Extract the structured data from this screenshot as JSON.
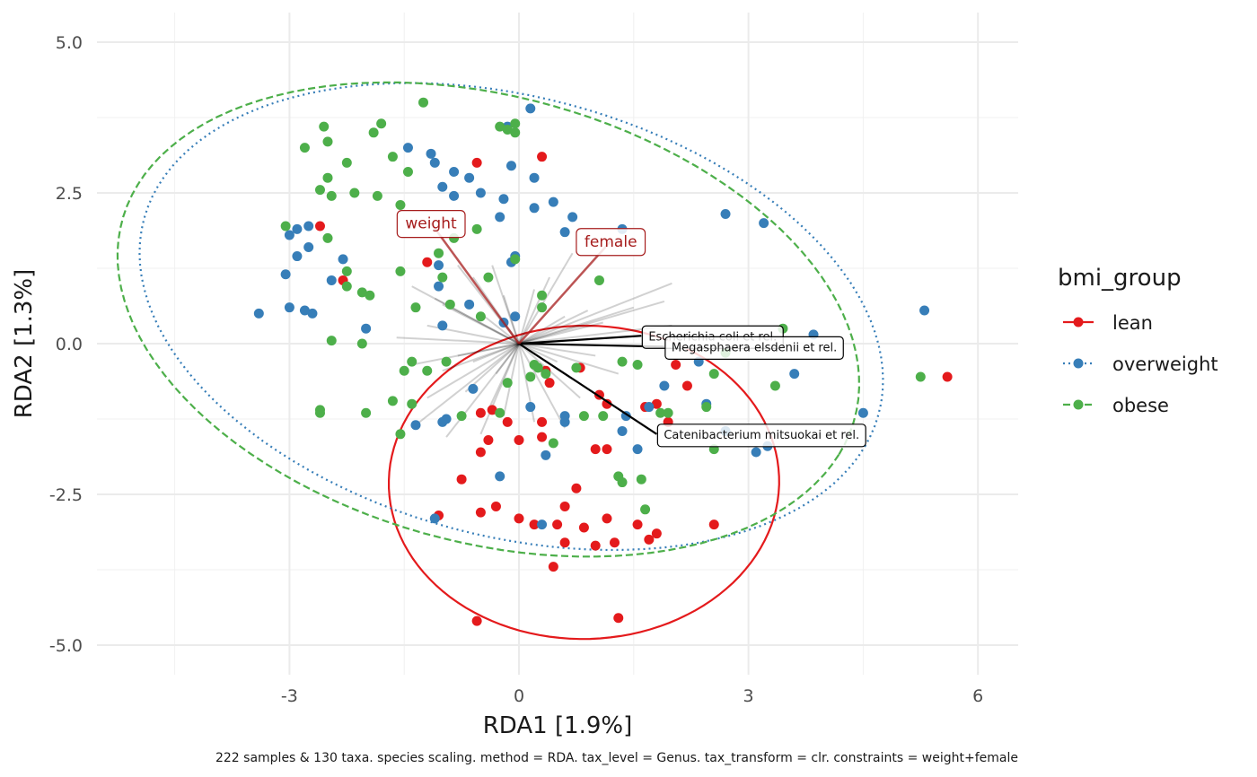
{
  "chart_data": {
    "type": "scatter",
    "xlabel": "RDA1 [1.9%]",
    "ylabel": "RDA2 [1.3%]",
    "caption": "222 samples & 130 taxa. species scaling. method = RDA. tax_level = Genus. tax_transform = clr. constraints = weight+female",
    "xlim": [
      -5.3,
      6.5
    ],
    "ylim": [
      -5.4,
      5.35
    ],
    "x_ticks": [
      -3,
      0,
      3,
      6
    ],
    "x_tick_labels": [
      "-3",
      "0",
      "3",
      "6"
    ],
    "y_ticks": [
      5.0,
      2.5,
      0.0,
      -2.5,
      -5.0
    ],
    "y_tick_labels": [
      "5.0",
      "2.5",
      "0.0",
      "-2.5",
      "-5.0"
    ],
    "grid": true,
    "legend": {
      "title": "bmi_group",
      "position": "right"
    },
    "series": [
      {
        "name": "lean",
        "color": "#e41a1c",
        "ellipse_style": "solid",
        "ellipse": {
          "cx": 0.85,
          "cy": -2.3,
          "rx": 2.6,
          "ry": 2.55,
          "angle": 80
        },
        "points": [
          [
            -2.6,
            1.95
          ],
          [
            -2.3,
            1.05
          ],
          [
            -1.2,
            1.35
          ],
          [
            -0.55,
            3.0
          ],
          [
            0.3,
            3.1
          ],
          [
            -0.75,
            -2.25
          ],
          [
            -0.5,
            -2.8
          ],
          [
            -0.3,
            -2.7
          ],
          [
            -0.5,
            -1.8
          ],
          [
            -0.4,
            -1.6
          ],
          [
            -0.35,
            -1.1
          ],
          [
            -0.5,
            -1.15
          ],
          [
            -0.15,
            -1.3
          ],
          [
            0.0,
            -1.6
          ],
          [
            0.3,
            -1.3
          ],
          [
            0.35,
            -0.45
          ],
          [
            0.4,
            -0.65
          ],
          [
            0.8,
            -0.4
          ],
          [
            1.05,
            -0.85
          ],
          [
            1.15,
            -1.0
          ],
          [
            1.65,
            -1.05
          ],
          [
            1.8,
            -1.0
          ],
          [
            1.95,
            -1.3
          ],
          [
            2.05,
            -0.35
          ],
          [
            2.2,
            -0.7
          ],
          [
            1.0,
            -1.75
          ],
          [
            1.15,
            -1.75
          ],
          [
            1.0,
            -3.35
          ],
          [
            0.6,
            -3.3
          ],
          [
            0.6,
            -2.7
          ],
          [
            0.5,
            -3.0
          ],
          [
            0.75,
            -2.4
          ],
          [
            0.85,
            -3.05
          ],
          [
            1.15,
            -2.9
          ],
          [
            1.25,
            -3.3
          ],
          [
            1.55,
            -3.0
          ],
          [
            1.7,
            -3.25
          ],
          [
            1.8,
            -3.15
          ],
          [
            0.2,
            -3.0
          ],
          [
            0.0,
            -2.9
          ],
          [
            -1.05,
            -2.85
          ],
          [
            -0.55,
            -4.6
          ],
          [
            0.45,
            -3.7
          ],
          [
            1.3,
            -4.55
          ],
          [
            2.55,
            -3.0
          ],
          [
            5.6,
            -0.55
          ],
          [
            0.3,
            -1.55
          ]
        ]
      },
      {
        "name": "overweight",
        "color": "#377eb8",
        "ellipse_style": "dotted",
        "ellipse": {
          "cx": -0.1,
          "cy": 0.45,
          "rx": 5.1,
          "ry": 3.55,
          "angle": -25
        },
        "points": [
          [
            -3.4,
            0.5
          ],
          [
            -3.05,
            1.15
          ],
          [
            -3.0,
            1.8
          ],
          [
            -3.0,
            0.6
          ],
          [
            -2.9,
            1.45
          ],
          [
            -2.9,
            1.9
          ],
          [
            -2.8,
            0.55
          ],
          [
            -2.75,
            1.6
          ],
          [
            -2.75,
            1.95
          ],
          [
            -2.7,
            0.5
          ],
          [
            -2.45,
            1.05
          ],
          [
            -2.3,
            1.4
          ],
          [
            -2.0,
            0.25
          ],
          [
            -1.45,
            3.25
          ],
          [
            -1.15,
            3.15
          ],
          [
            -1.1,
            3.0
          ],
          [
            -1.0,
            2.6
          ],
          [
            -0.85,
            2.45
          ],
          [
            -0.85,
            2.85
          ],
          [
            -0.65,
            2.75
          ],
          [
            -0.5,
            2.5
          ],
          [
            -0.25,
            2.1
          ],
          [
            -0.2,
            2.4
          ],
          [
            -0.1,
            2.95
          ],
          [
            -0.15,
            3.6
          ],
          [
            0.15,
            3.9
          ],
          [
            0.2,
            2.75
          ],
          [
            0.2,
            2.25
          ],
          [
            0.45,
            2.35
          ],
          [
            0.6,
            1.85
          ],
          [
            0.7,
            2.1
          ],
          [
            1.35,
            1.9
          ],
          [
            -1.05,
            1.3
          ],
          [
            -1.05,
            0.95
          ],
          [
            -1.0,
            0.3
          ],
          [
            -0.65,
            0.65
          ],
          [
            -0.2,
            0.35
          ],
          [
            -0.1,
            1.35
          ],
          [
            -0.05,
            1.45
          ],
          [
            -0.05,
            0.45
          ],
          [
            -1.35,
            -1.35
          ],
          [
            -1.0,
            -1.3
          ],
          [
            -0.95,
            -1.25
          ],
          [
            -0.6,
            -0.75
          ],
          [
            -0.25,
            -2.2
          ],
          [
            -1.1,
            -2.9
          ],
          [
            0.15,
            -1.05
          ],
          [
            0.6,
            -1.2
          ],
          [
            0.6,
            -1.3
          ],
          [
            1.4,
            -1.2
          ],
          [
            1.7,
            -1.05
          ],
          [
            1.9,
            -0.7
          ],
          [
            2.35,
            -0.3
          ],
          [
            2.45,
            -1.0
          ],
          [
            2.7,
            -1.45
          ],
          [
            2.7,
            2.15
          ],
          [
            3.2,
            2.0
          ],
          [
            3.1,
            -1.8
          ],
          [
            3.25,
            -1.7
          ],
          [
            3.6,
            -0.5
          ],
          [
            3.85,
            0.15
          ],
          [
            4.5,
            -1.15
          ],
          [
            5.3,
            0.55
          ],
          [
            0.35,
            -1.85
          ],
          [
            0.3,
            -3.0
          ],
          [
            1.55,
            -1.75
          ],
          [
            1.35,
            -1.45
          ]
        ]
      },
      {
        "name": "obese",
        "color": "#4daf4a",
        "ellipse_style": "dashed",
        "ellipse": {
          "cx": -0.4,
          "cy": 0.4,
          "rx": 5.1,
          "ry": 3.6,
          "angle": -26
        },
        "points": [
          [
            -3.05,
            1.95
          ],
          [
            -2.8,
            3.25
          ],
          [
            -2.6,
            2.55
          ],
          [
            -2.55,
            3.6
          ],
          [
            -2.5,
            3.35
          ],
          [
            -2.5,
            2.75
          ],
          [
            -2.5,
            1.75
          ],
          [
            -2.45,
            0.05
          ],
          [
            -2.45,
            2.45
          ],
          [
            -2.25,
            3.0
          ],
          [
            -2.25,
            1.2
          ],
          [
            -2.25,
            0.95
          ],
          [
            -2.15,
            2.5
          ],
          [
            -2.05,
            0.85
          ],
          [
            -2.05,
            0.0
          ],
          [
            -1.95,
            0.8
          ],
          [
            -1.9,
            3.5
          ],
          [
            -1.85,
            2.45
          ],
          [
            -1.8,
            3.65
          ],
          [
            -1.65,
            3.1
          ],
          [
            -1.55,
            2.3
          ],
          [
            -1.55,
            1.2
          ],
          [
            -1.45,
            2.85
          ],
          [
            -1.35,
            0.6
          ],
          [
            -1.25,
            4.0
          ],
          [
            -1.2,
            -0.45
          ],
          [
            -1.05,
            1.5
          ],
          [
            -1.0,
            1.1
          ],
          [
            -0.9,
            0.65
          ],
          [
            -0.85,
            1.75
          ],
          [
            -0.55,
            1.9
          ],
          [
            -0.5,
            0.45
          ],
          [
            -0.4,
            1.1
          ],
          [
            -0.25,
            3.6
          ],
          [
            -0.15,
            3.55
          ],
          [
            -0.05,
            3.65
          ],
          [
            -0.05,
            3.5
          ],
          [
            -0.05,
            1.4
          ],
          [
            0.3,
            0.8
          ],
          [
            0.3,
            0.6
          ],
          [
            0.35,
            -0.5
          ],
          [
            0.2,
            -0.35
          ],
          [
            0.15,
            -0.55
          ],
          [
            0.75,
            -0.4
          ],
          [
            1.05,
            1.05
          ],
          [
            0.45,
            -1.65
          ],
          [
            0.85,
            -1.2
          ],
          [
            1.1,
            -1.2
          ],
          [
            1.3,
            -2.2
          ],
          [
            1.35,
            -2.3
          ],
          [
            1.35,
            -0.3
          ],
          [
            1.55,
            -0.35
          ],
          [
            1.6,
            -2.25
          ],
          [
            1.65,
            -2.75
          ],
          [
            1.85,
            -1.15
          ],
          [
            1.95,
            -1.15
          ],
          [
            2.45,
            -1.05
          ],
          [
            2.55,
            -1.75
          ],
          [
            2.55,
            -0.5
          ],
          [
            2.7,
            -0.15
          ],
          [
            3.35,
            -0.7
          ],
          [
            3.45,
            0.25
          ],
          [
            5.25,
            -0.55
          ],
          [
            -2.6,
            -1.1
          ],
          [
            -2.6,
            -1.15
          ],
          [
            -1.65,
            -0.95
          ],
          [
            -1.55,
            -1.5
          ],
          [
            -1.4,
            -0.3
          ],
          [
            -1.4,
            -1.0
          ],
          [
            -0.95,
            -0.3
          ],
          [
            -0.75,
            -1.2
          ],
          [
            -0.25,
            -1.15
          ],
          [
            -2.0,
            -1.15
          ],
          [
            -1.5,
            -0.45
          ],
          [
            -0.15,
            -0.65
          ],
          [
            0.25,
            -0.4
          ]
        ]
      }
    ],
    "constraints": [
      {
        "label": "weight",
        "x": -1.15,
        "y": 2.0
      },
      {
        "label": "female",
        "x": 1.2,
        "y": 1.7
      }
    ],
    "taxa_labelled": [
      {
        "label": "Escherichia coli et rel.",
        "x": 1.6,
        "y": 0.13
      },
      {
        "label": "Megasphaera elsdenii et rel.",
        "x": 1.9,
        "y": -0.05
      },
      {
        "label": "Catenibacterium mitsuokai et rel.",
        "x": 1.8,
        "y": -1.5
      }
    ],
    "taxa_vectors": [
      [
        -1.4,
        0.95
      ],
      [
        -1.0,
        0.65
      ],
      [
        -0.6,
        1.1
      ],
      [
        -0.35,
        1.3
      ],
      [
        -1.2,
        0.3
      ],
      [
        -1.1,
        0.75
      ],
      [
        -0.8,
        -0.2
      ],
      [
        -1.0,
        -0.45
      ],
      [
        -0.7,
        -0.8
      ],
      [
        -0.4,
        -1.1
      ],
      [
        -0.95,
        -1.55
      ],
      [
        -1.4,
        -0.35
      ],
      [
        -0.2,
        -1.2
      ],
      [
        0.2,
        -1.3
      ],
      [
        0.5,
        -0.3
      ],
      [
        0.6,
        0.45
      ],
      [
        0.9,
        0.55
      ],
      [
        1.1,
        0.35
      ],
      [
        1.5,
        0.6
      ],
      [
        1.9,
        0.7
      ],
      [
        2.0,
        0.3
      ],
      [
        1.3,
        -0.5
      ],
      [
        0.8,
        -0.9
      ],
      [
        0.6,
        -1.4
      ],
      [
        -0.5,
        0.5
      ],
      [
        -0.3,
        -0.5
      ],
      [
        -1.6,
        0.1
      ],
      [
        -0.6,
        -0.3
      ],
      [
        0.2,
        0.9
      ],
      [
        -0.2,
        0.8
      ],
      [
        0.4,
        1.1
      ],
      [
        1.0,
        -0.2
      ],
      [
        -1.2,
        -0.9
      ],
      [
        -1.3,
        -1.3
      ],
      [
        -0.5,
        -1.5
      ],
      [
        0.7,
        1.5
      ],
      [
        2.0,
        1.0
      ],
      [
        -0.8,
        1.3
      ]
    ]
  },
  "legend_items": [
    {
      "label": "lean",
      "color": "#e41a1c",
      "dash": ""
    },
    {
      "label": "overweight",
      "color": "#377eb8",
      "dash": "2,4"
    },
    {
      "label": "obese",
      "color": "#4daf4a",
      "dash": "8,4"
    }
  ]
}
